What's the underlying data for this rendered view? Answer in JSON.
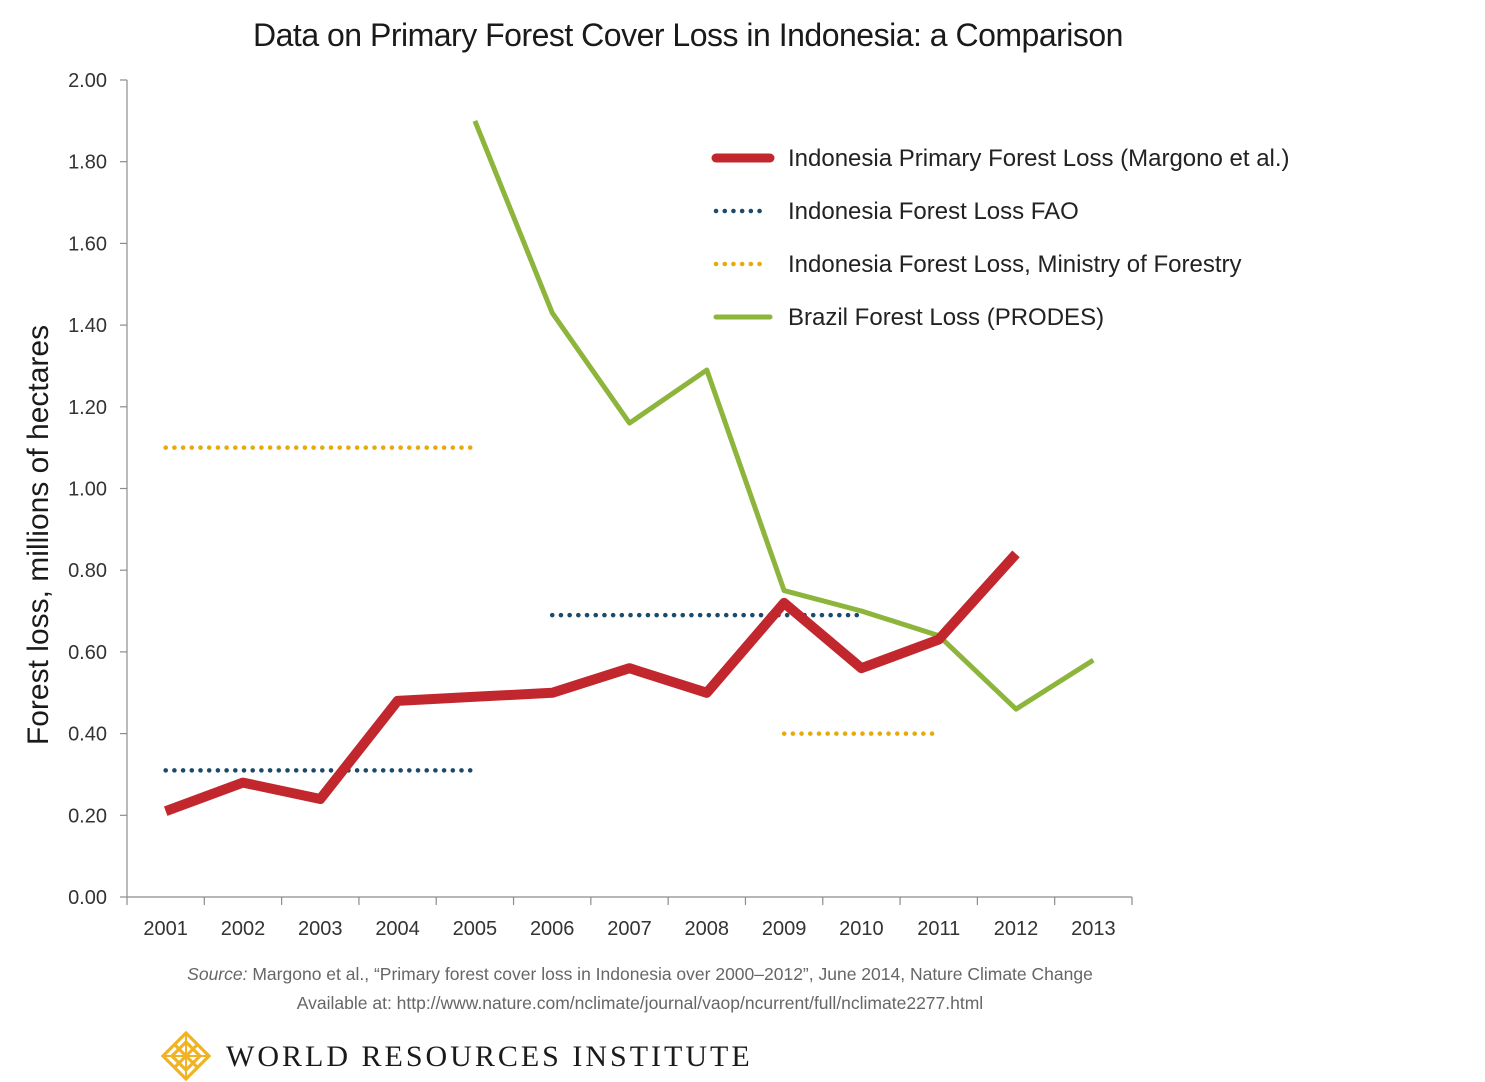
{
  "chart_data": {
    "type": "line",
    "title": "Data on Primary Forest Cover Loss in Indonesia: a Comparison",
    "ylabel": "Forest loss, millions of hectares",
    "xlabel": "",
    "categories": [
      "2001",
      "2002",
      "2003",
      "2004",
      "2005",
      "2006",
      "2007",
      "2008",
      "2009",
      "2010",
      "2011",
      "2012",
      "2013"
    ],
    "ylim": [
      0,
      2
    ],
    "yticks": [
      "0.00",
      "0.20",
      "0.40",
      "0.60",
      "0.80",
      "1.00",
      "1.20",
      "1.40",
      "1.60",
      "1.80",
      "2.00"
    ],
    "grid": false,
    "legend_position": "top-right",
    "series": [
      {
        "name": "Indonesia Primary Forest Loss (Margono et al.)",
        "color": "#c1272d",
        "style": "solid-thick",
        "values": [
          0.21,
          0.28,
          0.24,
          0.48,
          0.49,
          0.5,
          0.56,
          0.5,
          0.72,
          0.56,
          0.63,
          0.84,
          null
        ]
      },
      {
        "name": "Indonesia Forest Loss FAO",
        "color": "#1b4a6b",
        "style": "dotted",
        "segments": [
          {
            "x_start": "2001",
            "x_end": "2005",
            "value": 0.31
          },
          {
            "x_start": "2006",
            "x_end": "2010",
            "value": 0.69
          }
        ]
      },
      {
        "name": "Indonesia Forest Loss, Ministry of Forestry",
        "color": "#e8a90b",
        "style": "dotted",
        "segments": [
          {
            "x_start": "2001",
            "x_end": "2005",
            "value": 1.1
          },
          {
            "x_start": "2009",
            "x_end": "2011",
            "value": 0.4
          }
        ]
      },
      {
        "name": "Brazil Forest Loss (PRODES)",
        "color": "#8db53c",
        "style": "solid",
        "values": [
          null,
          null,
          null,
          null,
          1.9,
          1.43,
          1.16,
          1.29,
          0.75,
          0.7,
          0.64,
          0.46,
          0.58
        ]
      }
    ]
  },
  "source": {
    "prefix": "Source:",
    "line1": "Margono et al., “Primary forest cover loss in Indonesia over 2000–2012”, June 2014, Nature Climate Change",
    "line2": "Available at: http://www.nature.com/nclimate/journal/vaop/ncurrent/full/nclimate2277.html"
  },
  "footer": {
    "logo_icon": "wri-knot-logo-icon",
    "org_name": "WORLD RESOURCES INSTITUTE",
    "logo_color": "#f0b323"
  }
}
